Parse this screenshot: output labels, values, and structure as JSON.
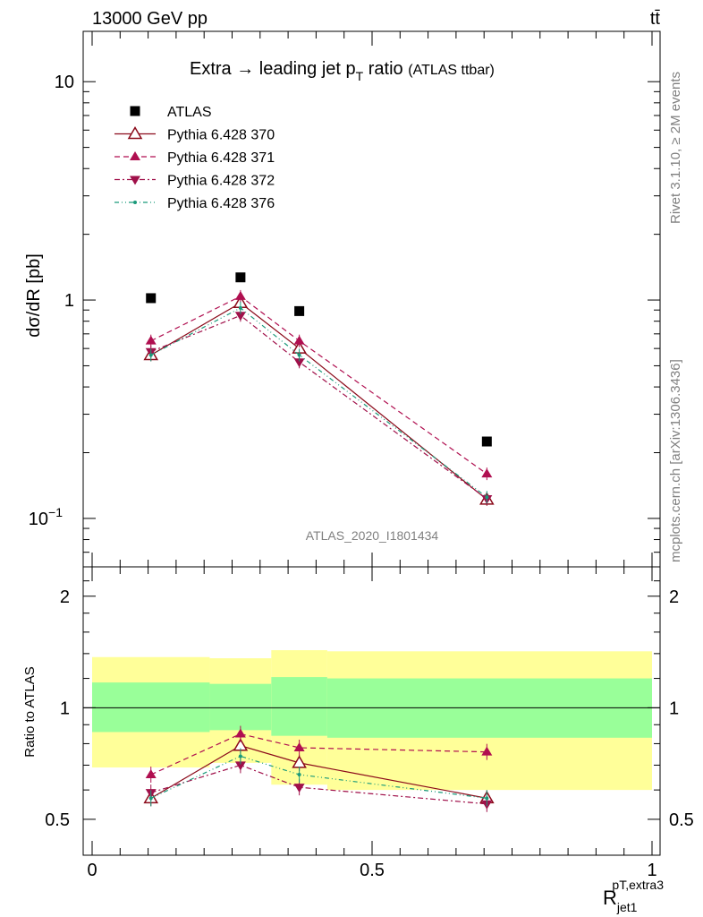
{
  "header": {
    "energy": "13000 GeV pp",
    "process": "tt̄",
    "title_main": "Extra → leading jet p",
    "title_sub": "T",
    "title_suffix": " ratio",
    "title_tag": "(ATLAS ttbar)",
    "rivet_label": "Rivet 3.1.10, ≥ 2M events",
    "mcplots_label": "mcplots.cern.ch [arXiv:1306.3436]",
    "analysis_label": "ATLAS_2020_I1801434"
  },
  "axes": {
    "ylabel_main": "dσ/dR [pb]",
    "ylabel_ratio": "Ratio to ATLAS",
    "xlabel": "R_jet1^pT,extra3",
    "main_ticks": [
      "10",
      "1",
      "10⁻¹"
    ],
    "ratio_ticks": [
      "2",
      "1",
      "0.5"
    ],
    "x_ticks": [
      "0",
      "0.5",
      "1"
    ]
  },
  "chart_data": {
    "type": "scatter",
    "x": [
      0.105,
      0.265,
      0.37,
      0.705
    ],
    "xlim": [
      0,
      1
    ],
    "ylim_main": [
      0.06,
      17
    ],
    "yscale_main": "log",
    "ylim_ratio": [
      0.4,
      2.4
    ],
    "yscale_ratio": "log",
    "legend_position": "top-left",
    "bins": [
      [
        0.0,
        0.21
      ],
      [
        0.21,
        0.32
      ],
      [
        0.32,
        0.42
      ],
      [
        0.42,
        1.0
      ]
    ],
    "band_outer": [
      [
        0.69,
        1.37
      ],
      [
        0.71,
        1.36
      ],
      [
        0.62,
        1.43
      ],
      [
        0.6,
        1.42
      ]
    ],
    "band_inner": [
      [
        0.86,
        1.17
      ],
      [
        0.87,
        1.16
      ],
      [
        0.84,
        1.21
      ],
      [
        0.83,
        1.2
      ]
    ],
    "series": [
      {
        "name": "ATLAS",
        "color": "#000000",
        "marker": "square",
        "line": "none",
        "values": [
          1.02,
          1.27,
          0.89,
          0.225
        ],
        "ratio": [
          1,
          1,
          1,
          1
        ]
      },
      {
        "name": "Pythia 6.428 370",
        "color": "#8b0a1a",
        "marker": "tri-open",
        "line": "solid",
        "values": [
          0.56,
          0.97,
          0.6,
          0.122
        ],
        "ratio": [
          0.57,
          0.79,
          0.71,
          0.57
        ]
      },
      {
        "name": "Pythia 6.428 371",
        "color": "#b00f50",
        "marker": "tri-up",
        "line": "dashed",
        "values": [
          0.65,
          1.04,
          0.65,
          0.16
        ],
        "ratio": [
          0.66,
          0.85,
          0.78,
          0.76
        ]
      },
      {
        "name": "Pythia 6.428 372",
        "color": "#a0104a",
        "marker": "tri-down",
        "line": "dashdot",
        "values": [
          0.58,
          0.85,
          0.52,
          0.123
        ],
        "ratio": [
          0.59,
          0.7,
          0.61,
          0.55
        ]
      },
      {
        "name": "Pythia 6.428 376",
        "color": "#1a9a7a",
        "marker": "dot",
        "line": "dashdotdot",
        "values": [
          0.56,
          0.92,
          0.56,
          0.125
        ],
        "ratio": [
          0.57,
          0.74,
          0.66,
          0.57
        ]
      }
    ]
  }
}
